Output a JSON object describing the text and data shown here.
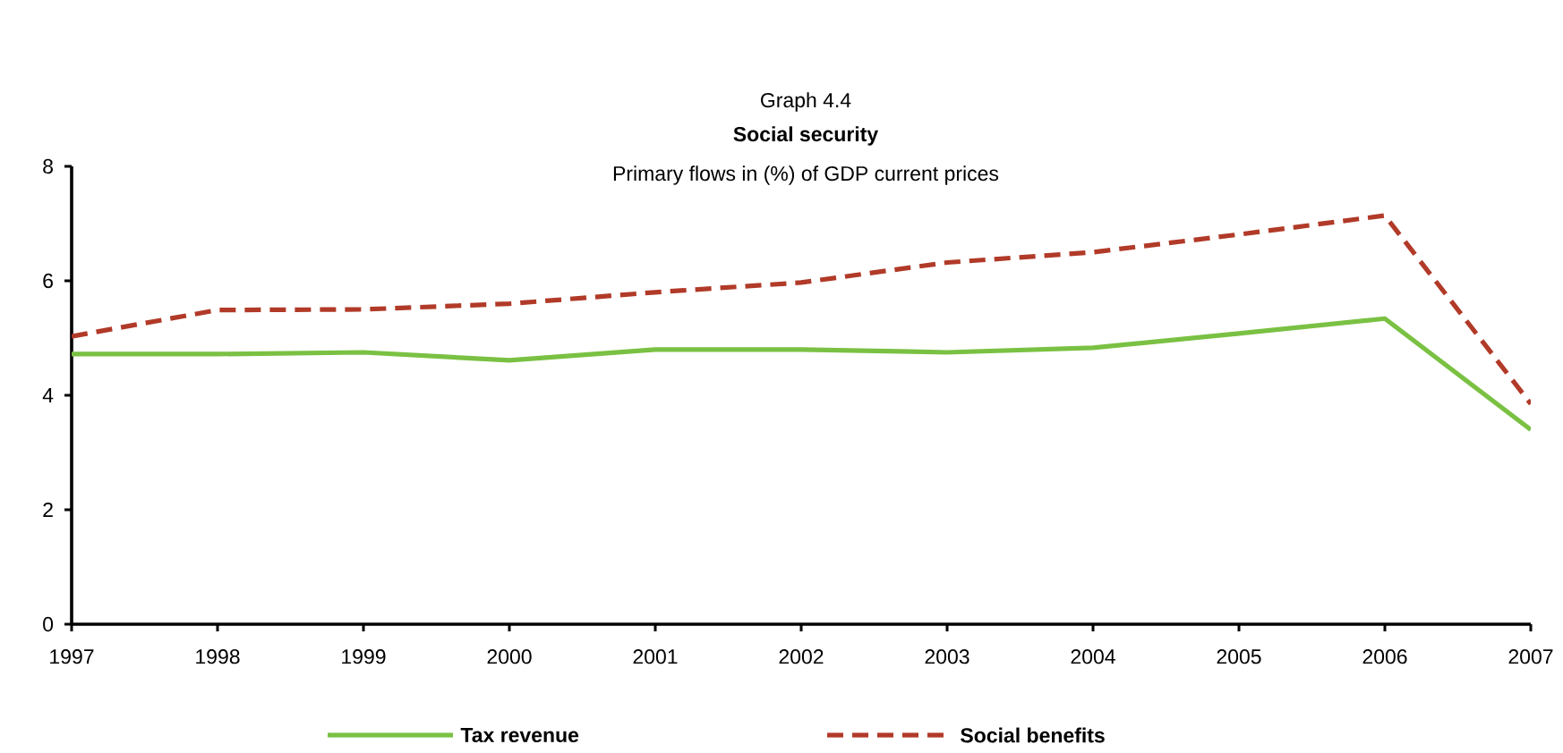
{
  "chart_data": {
    "type": "line",
    "title": "Social security",
    "subtitle": "Primary flows in (%) of GDP current prices",
    "annotations": [
      "Graph 4.4"
    ],
    "x": [
      1997,
      1998,
      1999,
      2000,
      2001,
      2002,
      2003,
      2004,
      2005,
      2006,
      2007
    ],
    "series": [
      {
        "name": "Tax revenue",
        "color": "#7ac143",
        "line_style": "solid",
        "values": [
          4.72,
          4.72,
          4.75,
          4.61,
          4.8,
          4.8,
          4.75,
          4.83,
          5.08,
          5.34,
          3.4
        ]
      },
      {
        "name": "Social benefits",
        "color": "#b13a28",
        "line_style": "dashed",
        "values": [
          5.03,
          5.49,
          5.5,
          5.6,
          5.8,
          5.97,
          6.32,
          6.5,
          6.81,
          7.14,
          3.85
        ]
      }
    ],
    "xlim": [
      1997,
      2007
    ],
    "xticks": [
      1997,
      1998,
      1999,
      2000,
      2001,
      2002,
      2003,
      2004,
      2005,
      2006,
      2007
    ],
    "ylim": [
      0,
      8
    ],
    "yticks": [
      0,
      2,
      4,
      6,
      8
    ],
    "grid": false,
    "legend": "bottom",
    "marker": "none"
  }
}
